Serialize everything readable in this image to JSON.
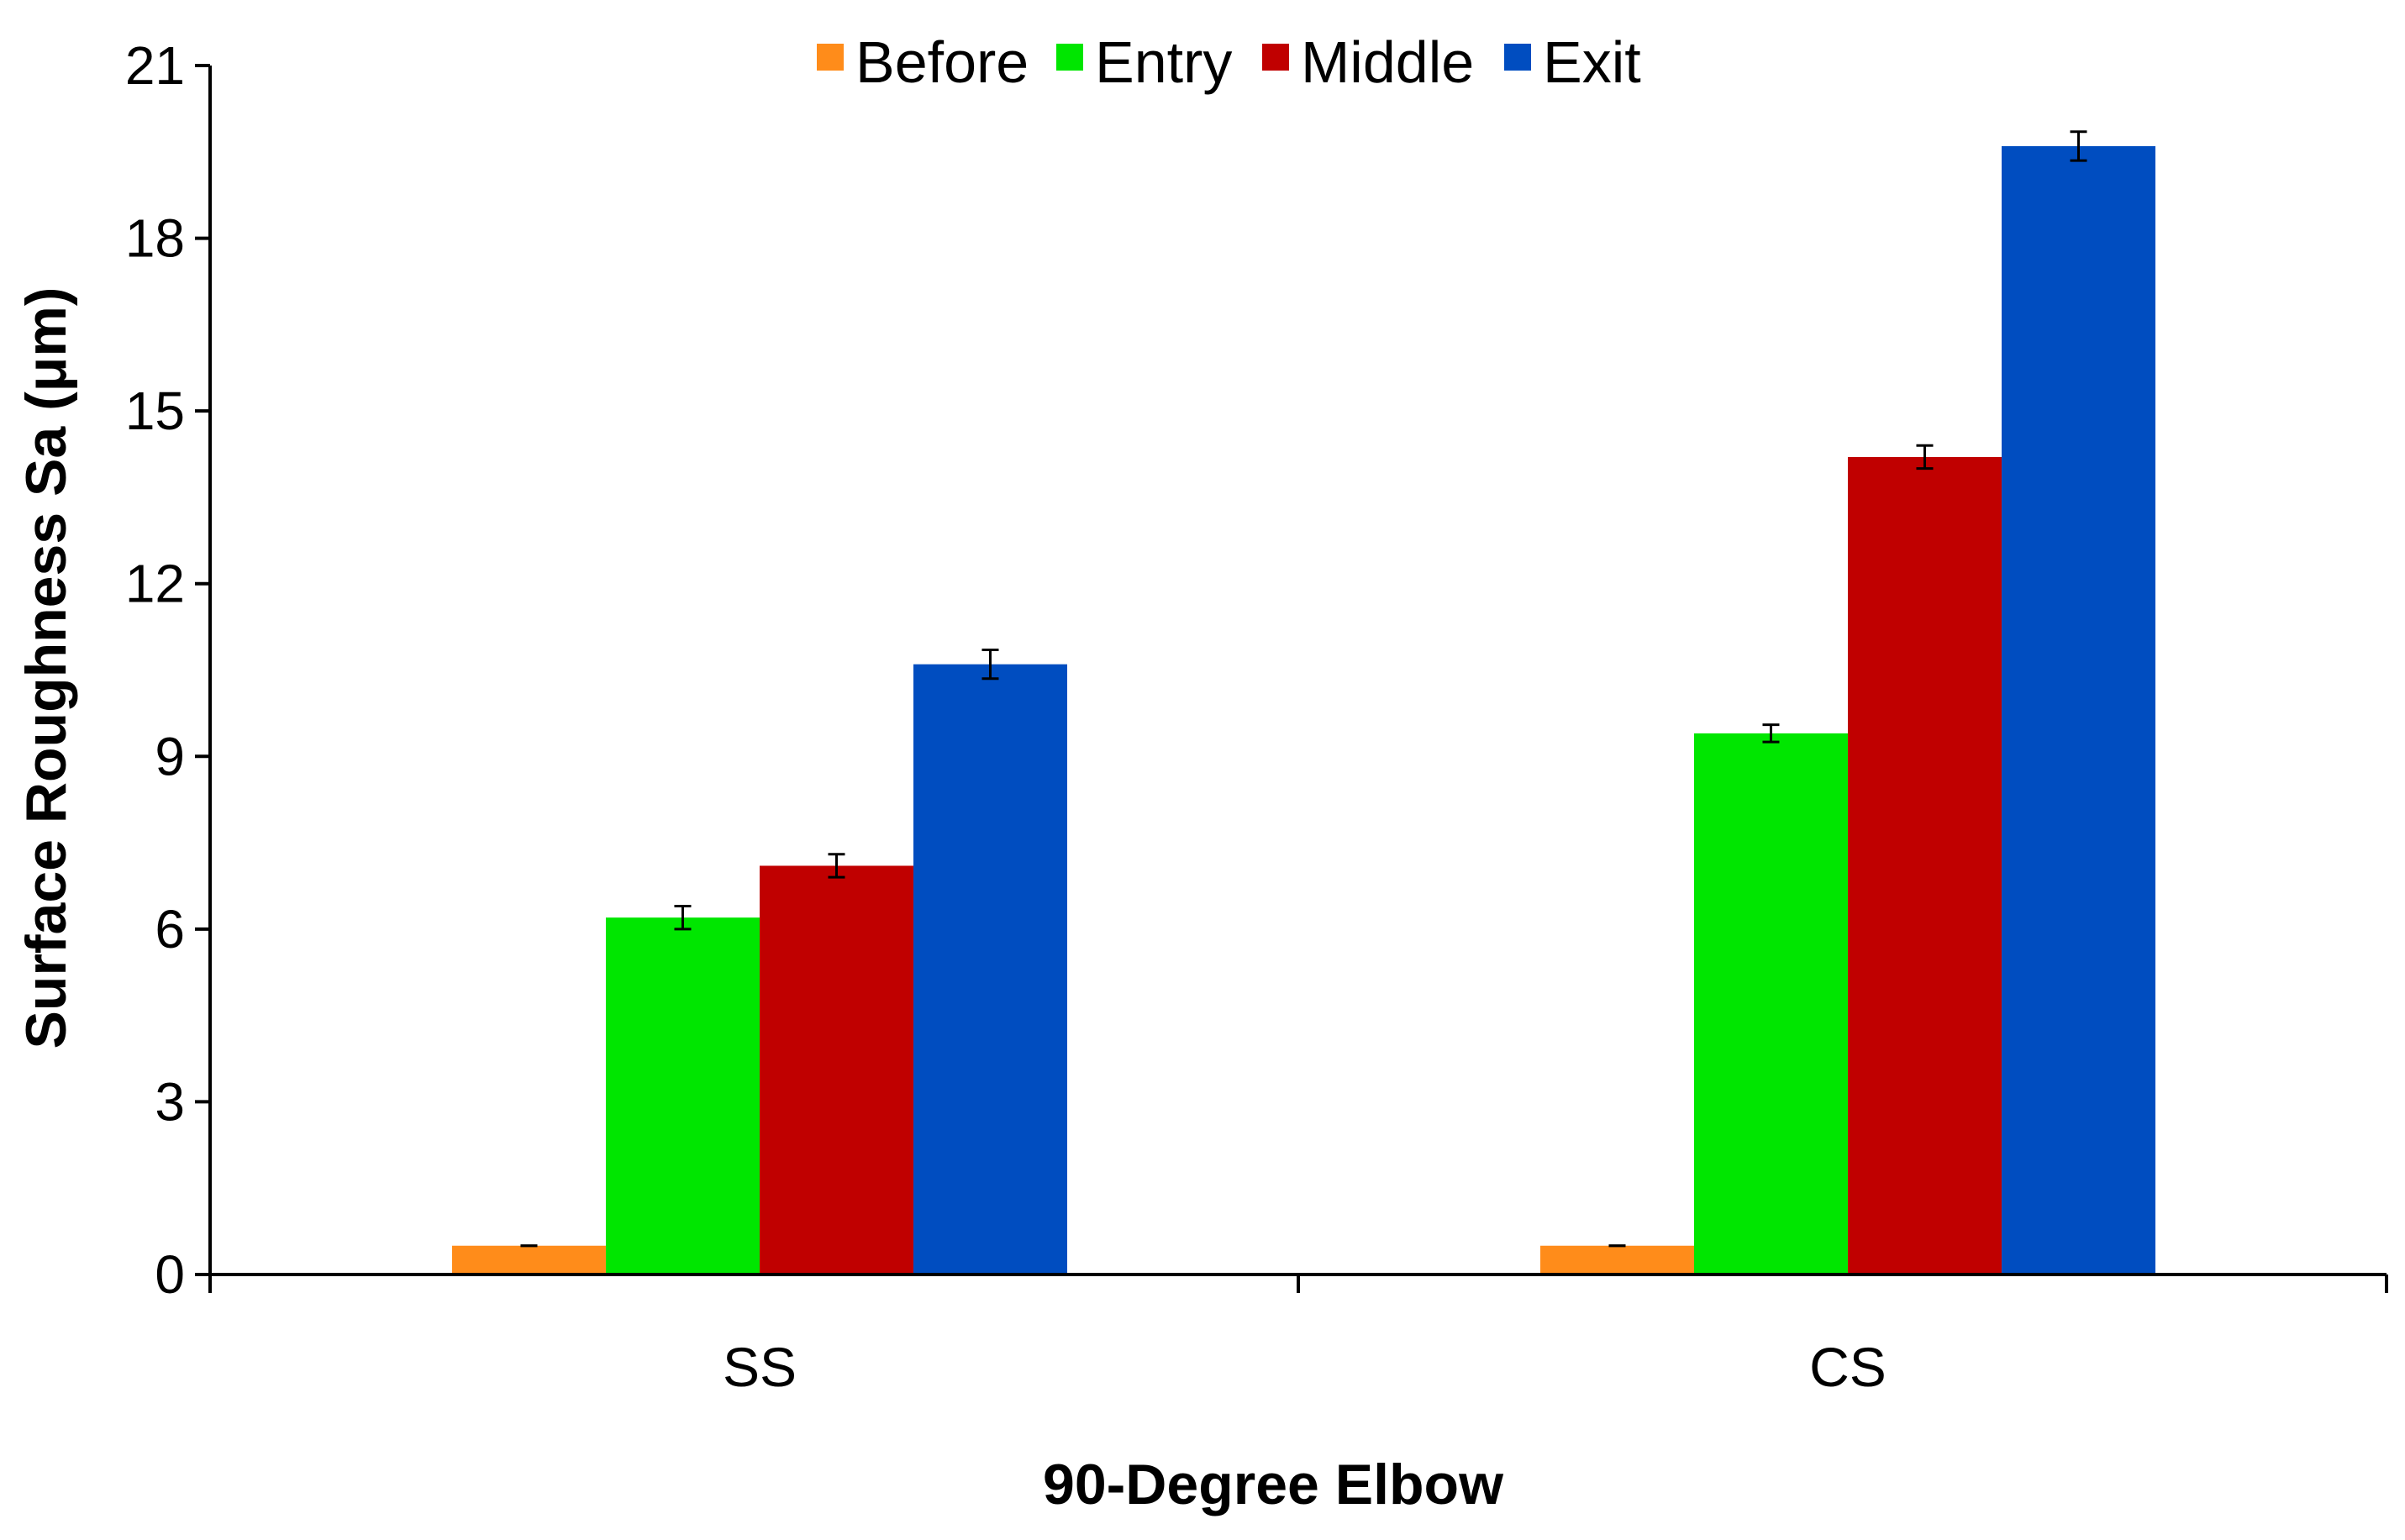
{
  "chart_data": {
    "type": "bar",
    "categories": [
      "SS",
      "CS"
    ],
    "series": [
      {
        "name": "Before",
        "color": "#FF8C1A",
        "values": [
          0.5,
          0.5
        ],
        "errors": [
          0.0,
          0.0
        ]
      },
      {
        "name": "Entry",
        "color": "#00E600",
        "values": [
          6.2,
          9.4
        ],
        "errors": [
          0.2,
          0.15
        ]
      },
      {
        "name": "Middle",
        "color": "#C00000",
        "values": [
          7.1,
          14.2
        ],
        "errors": [
          0.2,
          0.2
        ]
      },
      {
        "name": "Exit",
        "color": "#004DC0",
        "values": [
          10.6,
          19.6
        ],
        "errors": [
          0.25,
          0.25
        ]
      }
    ],
    "xlabel": "90-Degree Elbow",
    "ylabel": "Surface Roughness Sa (μm)",
    "ylim": [
      0,
      21
    ],
    "yticks": [
      0,
      3,
      6,
      9,
      12,
      15,
      18,
      21
    ],
    "legend_position": "top",
    "grid": false,
    "error_bars": true
  }
}
